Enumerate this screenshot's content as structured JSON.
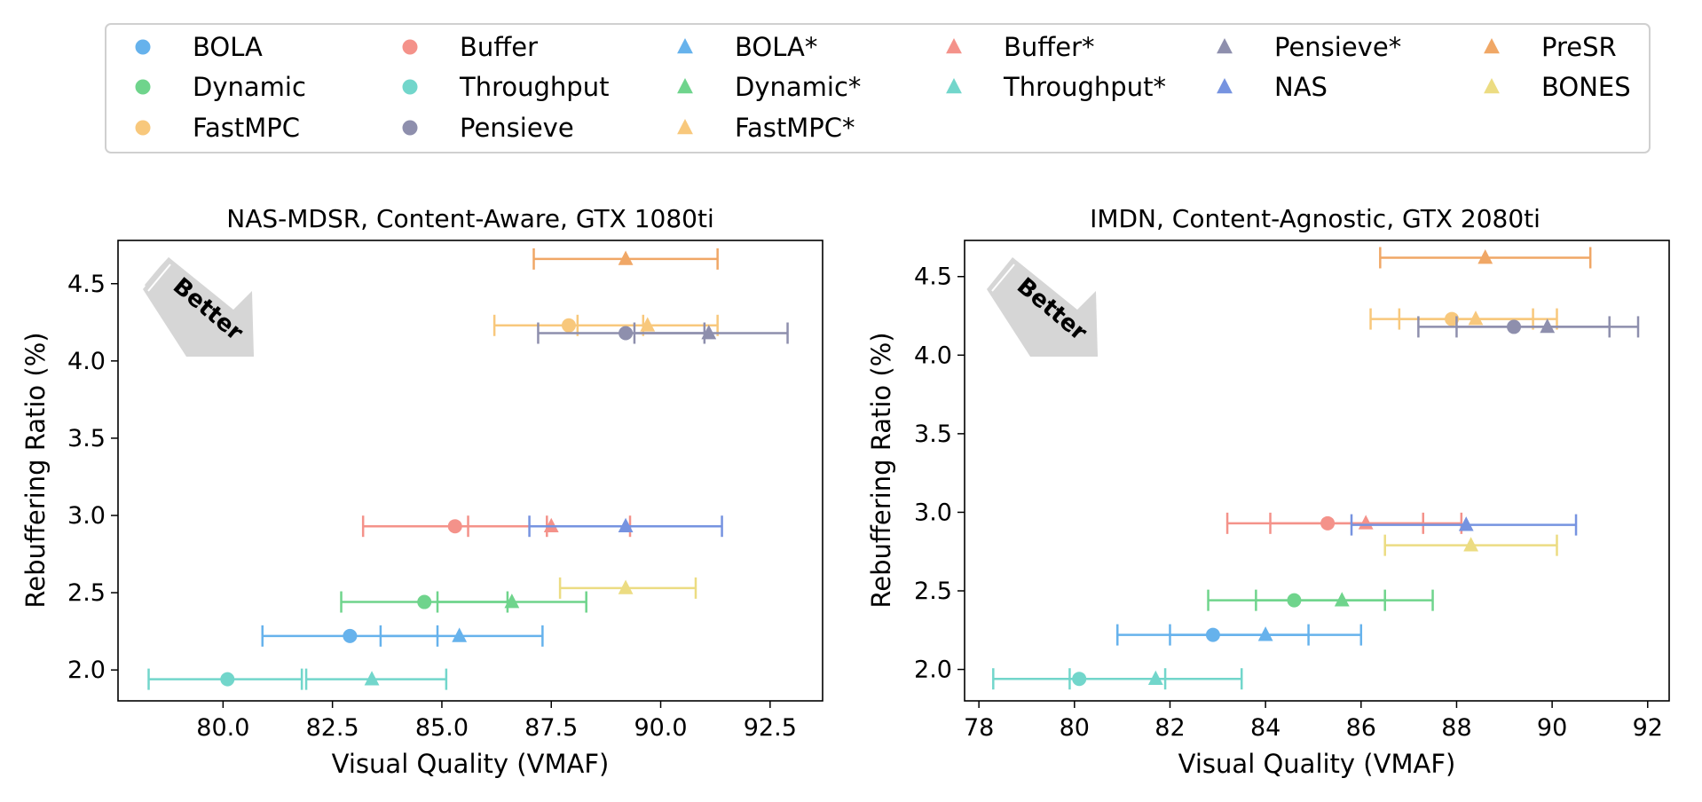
{
  "series_meta": {
    "BOLA": {
      "color": "#66b2ec",
      "marker": "circle"
    },
    "Buffer": {
      "color": "#f4928a",
      "marker": "circle"
    },
    "BOLA*": {
      "color": "#66b2ec",
      "marker": "triangle"
    },
    "Buffer*": {
      "color": "#f4928a",
      "marker": "triangle"
    },
    "Pensieve*": {
      "color": "#8e8fad",
      "marker": "triangle"
    },
    "PreSR": {
      "color": "#f0a766",
      "marker": "triangle"
    },
    "Dynamic": {
      "color": "#6fd48c",
      "marker": "circle"
    },
    "Throughput": {
      "color": "#72d6cb",
      "marker": "circle"
    },
    "Dynamic*": {
      "color": "#6fd48c",
      "marker": "triangle"
    },
    "Throughput*": {
      "color": "#72d6cb",
      "marker": "triangle"
    },
    "NAS": {
      "color": "#7693e0",
      "marker": "triangle"
    },
    "BONES": {
      "color": "#ecdc82",
      "marker": "triangle"
    },
    "FastMPC": {
      "color": "#f8c87c",
      "marker": "circle"
    },
    "Pensieve": {
      "color": "#8e8fad",
      "marker": "circle"
    },
    "FastMPC*": {
      "color": "#f8c87c",
      "marker": "triangle"
    }
  },
  "legend": {
    "columns": [
      [
        "BOLA",
        "Dynamic",
        "FastMPC"
      ],
      [
        "Buffer",
        "Throughput",
        "Pensieve"
      ],
      [
        "BOLA*",
        "Dynamic*",
        "FastMPC*"
      ],
      [
        "Buffer*",
        "Throughput*"
      ],
      [
        "Pensieve*",
        "NAS"
      ],
      [
        "PreSR",
        "BONES"
      ]
    ]
  },
  "annotation": {
    "better_label": "Better"
  },
  "chart_data": [
    {
      "type": "scatter",
      "title": "NAS-MDSR, Content-Aware, GTX 1080ti",
      "xlabel": "Visual Quality (VMAF)",
      "ylabel": "Rebuffering Ratio (%)",
      "xlim": [
        77.6,
        93.7
      ],
      "ylim": [
        1.8,
        4.78
      ],
      "xticks": [
        80.0,
        82.5,
        85.0,
        87.5,
        90.0,
        92.5
      ],
      "xtick_labels": [
        "80.0",
        "82.5",
        "85.0",
        "87.5",
        "90.0",
        "92.5"
      ],
      "yticks": [
        2.0,
        2.5,
        3.0,
        3.5,
        4.0,
        4.5
      ],
      "ytick_labels": [
        "2.0",
        "2.5",
        "3.0",
        "3.5",
        "4.0",
        "4.5"
      ],
      "points": [
        {
          "series": "PreSR",
          "x": 89.2,
          "y": 4.66,
          "xerr": [
            87.1,
            91.3
          ]
        },
        {
          "series": "FastMPC",
          "x": 87.9,
          "y": 4.23,
          "xerr": [
            86.2,
            89.6
          ]
        },
        {
          "series": "FastMPC*",
          "x": 89.7,
          "y": 4.23,
          "xerr": [
            88.1,
            91.3
          ]
        },
        {
          "series": "Pensieve",
          "x": 89.2,
          "y": 4.18,
          "xerr": [
            87.2,
            91.0
          ]
        },
        {
          "series": "Pensieve*",
          "x": 91.1,
          "y": 4.18,
          "xerr": [
            89.4,
            92.9
          ]
        },
        {
          "series": "Buffer",
          "x": 85.3,
          "y": 2.93,
          "xerr": [
            83.2,
            87.4
          ]
        },
        {
          "series": "Buffer*",
          "x": 87.5,
          "y": 2.93,
          "xerr": [
            85.6,
            89.3
          ]
        },
        {
          "series": "NAS",
          "x": 89.2,
          "y": 2.93,
          "xerr": [
            87.0,
            91.4
          ]
        },
        {
          "series": "BONES",
          "x": 89.2,
          "y": 2.53,
          "xerr": [
            87.7,
            90.8
          ]
        },
        {
          "series": "Dynamic",
          "x": 84.6,
          "y": 2.44,
          "xerr": [
            82.7,
            86.5
          ]
        },
        {
          "series": "Dynamic*",
          "x": 86.6,
          "y": 2.44,
          "xerr": [
            84.9,
            88.3
          ]
        },
        {
          "series": "BOLA",
          "x": 82.9,
          "y": 2.22,
          "xerr": [
            80.9,
            84.9
          ]
        },
        {
          "series": "BOLA*",
          "x": 85.4,
          "y": 2.22,
          "xerr": [
            83.6,
            87.3
          ]
        },
        {
          "series": "Throughput",
          "x": 80.1,
          "y": 1.94,
          "xerr": [
            78.3,
            81.8
          ]
        },
        {
          "series": "Throughput*",
          "x": 83.4,
          "y": 1.94,
          "xerr": [
            81.9,
            85.1
          ]
        }
      ]
    },
    {
      "type": "scatter",
      "title": "IMDN, Content-Agnostic, GTX 2080ti",
      "xlabel": "Visual Quality (VMAF)",
      "ylabel": "Rebuffering Ratio (%)",
      "xlim": [
        77.7,
        92.45
      ],
      "ylim": [
        1.8,
        4.73
      ],
      "xticks": [
        78,
        80,
        82,
        84,
        86,
        88,
        90,
        92
      ],
      "xtick_labels": [
        "78",
        "80",
        "82",
        "84",
        "86",
        "88",
        "90",
        "92"
      ],
      "yticks": [
        2.0,
        2.5,
        3.0,
        3.5,
        4.0,
        4.5
      ],
      "ytick_labels": [
        "2.0",
        "2.5",
        "3.0",
        "3.5",
        "4.0",
        "4.5"
      ],
      "points": [
        {
          "series": "PreSR",
          "x": 88.6,
          "y": 4.62,
          "xerr": [
            86.4,
            90.8
          ]
        },
        {
          "series": "FastMPC",
          "x": 87.9,
          "y": 4.23,
          "xerr": [
            86.2,
            89.6
          ]
        },
        {
          "series": "FastMPC*",
          "x": 88.4,
          "y": 4.23,
          "xerr": [
            86.8,
            90.1
          ]
        },
        {
          "series": "Pensieve",
          "x": 89.2,
          "y": 4.18,
          "xerr": [
            87.2,
            91.2
          ]
        },
        {
          "series": "Pensieve*",
          "x": 89.9,
          "y": 4.18,
          "xerr": [
            88.0,
            91.8
          ]
        },
        {
          "series": "Buffer",
          "x": 85.3,
          "y": 2.93,
          "xerr": [
            83.2,
            87.3
          ]
        },
        {
          "series": "Buffer*",
          "x": 86.1,
          "y": 2.93,
          "xerr": [
            84.1,
            88.1
          ]
        },
        {
          "series": "NAS",
          "x": 88.2,
          "y": 2.92,
          "xerr": [
            85.8,
            90.5
          ]
        },
        {
          "series": "BONES",
          "x": 88.3,
          "y": 2.79,
          "xerr": [
            86.5,
            90.1
          ]
        },
        {
          "series": "Dynamic",
          "x": 84.6,
          "y": 2.44,
          "xerr": [
            82.8,
            86.5
          ]
        },
        {
          "series": "Dynamic*",
          "x": 85.6,
          "y": 2.44,
          "xerr": [
            83.8,
            87.5
          ]
        },
        {
          "series": "BOLA",
          "x": 82.9,
          "y": 2.22,
          "xerr": [
            80.9,
            84.9
          ]
        },
        {
          "series": "BOLA*",
          "x": 84.0,
          "y": 2.22,
          "xerr": [
            82.0,
            86.0
          ]
        },
        {
          "series": "Throughput",
          "x": 80.1,
          "y": 1.94,
          "xerr": [
            78.3,
            81.9
          ]
        },
        {
          "series": "Throughput*",
          "x": 81.7,
          "y": 1.94,
          "xerr": [
            79.9,
            83.5
          ]
        }
      ]
    }
  ]
}
